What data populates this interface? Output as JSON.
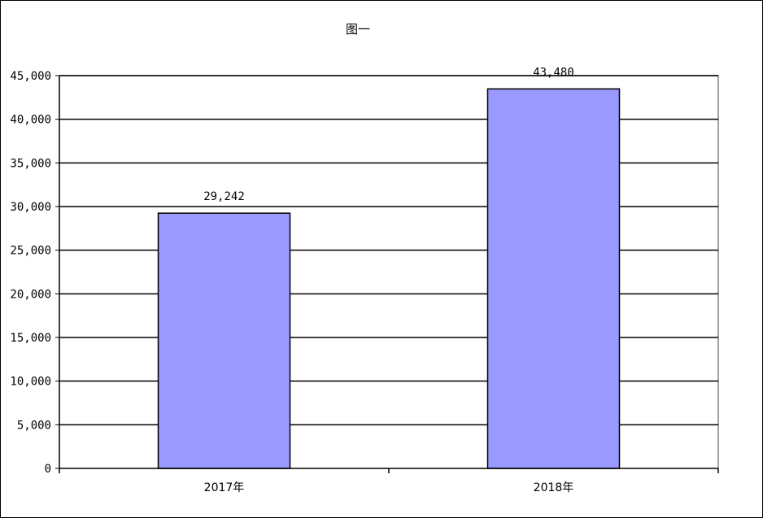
{
  "chart_data": {
    "type": "bar",
    "title": "图一",
    "categories": [
      "2017年",
      "2018年"
    ],
    "values": [
      29242,
      43480
    ],
    "data_labels": [
      "29,242",
      "43,480"
    ],
    "ylim": [
      0,
      45000
    ],
    "y_ticks": [
      "0",
      "5,000",
      "10,000",
      "15,000",
      "20,000",
      "25,000",
      "30,000",
      "35,000",
      "40,000",
      "45,000"
    ],
    "grid": true,
    "legend": "none",
    "colors": {
      "bar": "#9999FF",
      "bar_stroke": "#000000",
      "grid": "#000000",
      "plot_border": "#808080"
    }
  }
}
